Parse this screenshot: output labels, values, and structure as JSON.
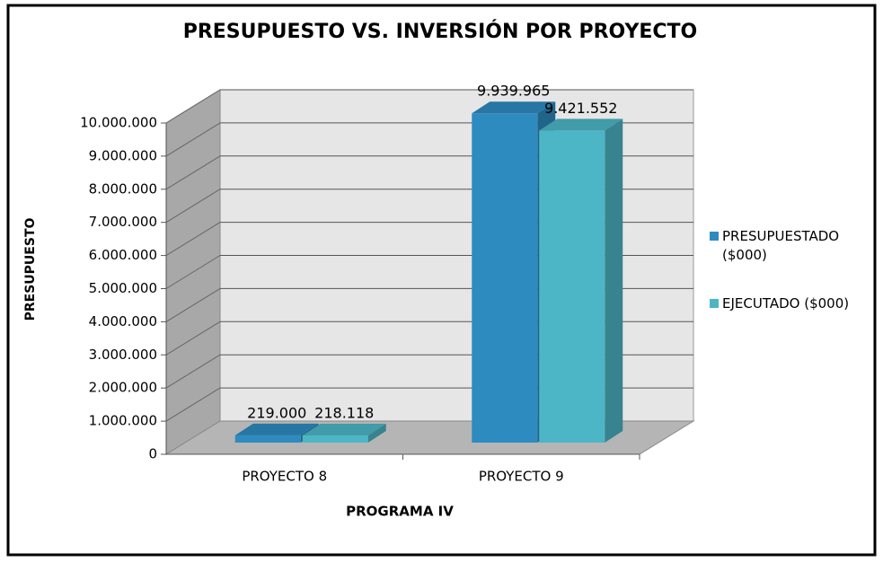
{
  "chart_data": {
    "type": "bar3d",
    "title": "PRESUPUESTO VS. INVERSIÓN POR PROYECTO",
    "x_label": "PROGRAMA IV",
    "y_label": "PRESUPUESTO",
    "categories": [
      "PROYECTO 8",
      "PROYECTO 9"
    ],
    "series": [
      {
        "name": "PRESUPUESTADO ($000)",
        "color": "#2e8bc0",
        "values": [
          219000,
          9939965
        ],
        "value_labels": [
          "219.000",
          "9.939.965"
        ]
      },
      {
        "name": "EJECUTADO ($000)",
        "color": "#4cb6c6",
        "values": [
          218118,
          9421552
        ],
        "value_labels": [
          "218.118",
          "9.421.552"
        ]
      }
    ],
    "ylim": [
      0,
      10000000
    ],
    "yticks": [
      0,
      {
        "value": 1000000,
        "label": "1.000.000"
      },
      {
        "value": 2000000,
        "label": "2.000.000"
      },
      {
        "value": 3000000,
        "label": "3.000.000"
      },
      {
        "value": 4000000,
        "label": "4.000.000"
      },
      {
        "value": 5000000,
        "label": "5.000.000"
      },
      {
        "value": 6000000,
        "label": "6.000.000"
      },
      {
        "value": 7000000,
        "label": "7.000.000"
      },
      {
        "value": 8000000,
        "label": "8.000.000"
      },
      {
        "value": 9000000,
        "label": "9.000.000"
      },
      {
        "value": 10000000,
        "label": "10.000.000"
      }
    ],
    "grid": true,
    "legend": "right"
  }
}
